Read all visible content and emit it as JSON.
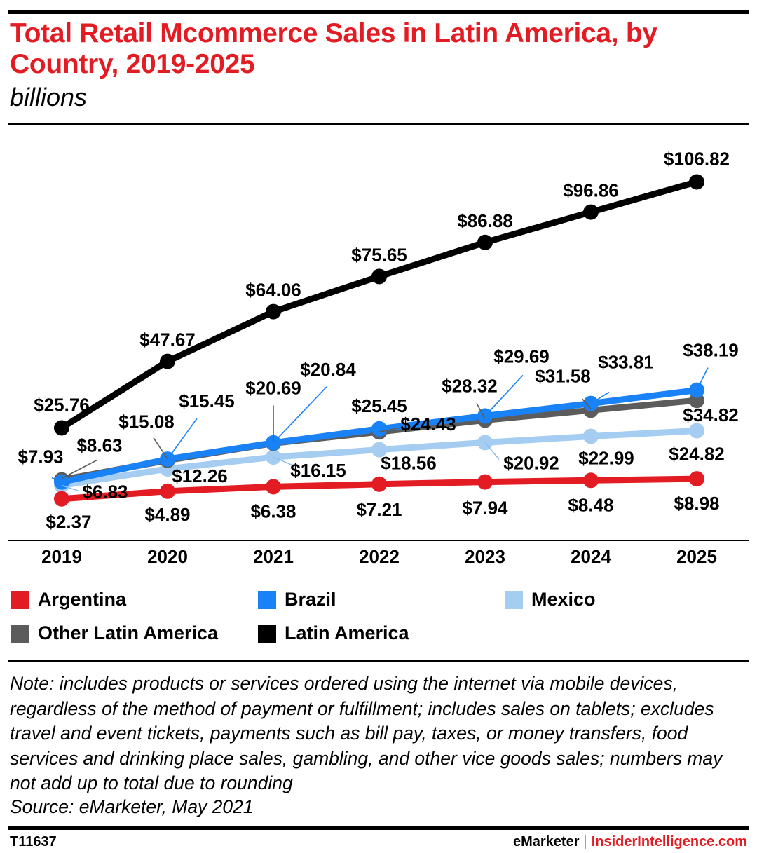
{
  "header": {
    "title": "Total Retail Mcommerce Sales in Latin America, by Country, 2019-2025",
    "subtitle": "billions"
  },
  "colors": {
    "accent": "#e31b23",
    "argentina": "#e31b23",
    "brazil": "#1a82f7",
    "mexico": "#a5cdf1",
    "other": "#5c5c5c",
    "latin_america": "#000000"
  },
  "chart_data": {
    "type": "line",
    "title": "Total Retail Mcommerce Sales in Latin America, by Country, 2019-2025",
    "subtitle": "billions",
    "xlabel": "",
    "ylabel": "",
    "ylim": [
      0,
      115
    ],
    "grid": false,
    "categories": [
      "2019",
      "2020",
      "2021",
      "2022",
      "2023",
      "2024",
      "2025"
    ],
    "series": [
      {
        "name": "Latin America",
        "key": "latin_america",
        "values": [
          25.76,
          47.67,
          64.06,
          75.65,
          86.88,
          96.86,
          106.82
        ],
        "labels": [
          "$25.76",
          "$47.67",
          "$64.06",
          "$75.65",
          "$86.88",
          "$96.86",
          "$106.82"
        ]
      },
      {
        "name": "Other Latin America",
        "key": "other",
        "values": [
          8.63,
          15.08,
          20.69,
          24.43,
          28.32,
          31.58,
          34.82
        ],
        "labels": [
          "$8.63",
          "$15.08",
          "$20.69",
          "$24.43",
          "$28.32",
          "$31.58",
          "$34.82"
        ]
      },
      {
        "name": "Brazil",
        "key": "brazil",
        "values": [
          7.93,
          15.45,
          20.84,
          25.45,
          29.69,
          33.81,
          38.19
        ],
        "labels": [
          "$7.93",
          "$15.45",
          "$20.84",
          "$25.45",
          "$29.69",
          "$33.81",
          "$38.19"
        ]
      },
      {
        "name": "Mexico",
        "key": "mexico",
        "values": [
          6.83,
          12.26,
          16.15,
          18.56,
          20.92,
          22.99,
          24.82
        ],
        "labels": [
          "$6.83",
          "$12.26",
          "$16.15",
          "$18.56",
          "$20.92",
          "$22.99",
          "$24.82"
        ]
      },
      {
        "name": "Argentina",
        "key": "argentina",
        "values": [
          2.37,
          4.89,
          6.38,
          7.21,
          7.94,
          8.48,
          8.98
        ],
        "labels": [
          "$2.37",
          "$4.89",
          "$6.38",
          "$7.21",
          "$7.94",
          "$8.48",
          "$8.98"
        ]
      }
    ],
    "legend": [
      "Argentina",
      "Brazil",
      "Mexico",
      "Other Latin America",
      "Latin America"
    ]
  },
  "legend": {
    "argentina": "Argentina",
    "brazil": "Brazil",
    "mexico": "Mexico",
    "other": "Other Latin America",
    "latin_america": "Latin America"
  },
  "footer": {
    "note": "Note: includes products or services ordered using the internet via mobile devices, regardless of the method of payment or fulfillment; includes sales on tablets; excludes travel and event tickets, payments such as bill pay, taxes, or money transfers, food services and drinking place sales, gambling, and other vice goods sales; numbers may not add up to total due to rounding",
    "source": "Source: eMarketer, May 2021",
    "chart_id": "T11637",
    "brand": "eMarketer",
    "separator": "|",
    "brand2": "InsiderIntelligence.com"
  }
}
